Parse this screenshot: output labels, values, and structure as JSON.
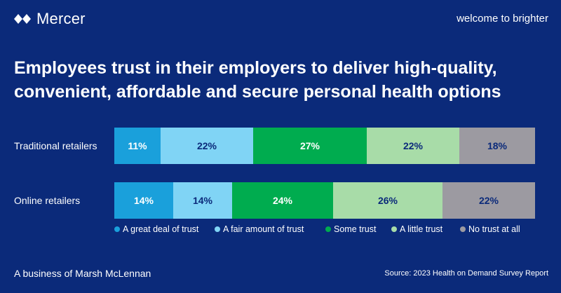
{
  "brand": {
    "name": "Mercer",
    "tagline": "welcome to brighter"
  },
  "headline": {
    "line1": "Employees trust in their employers to deliver high-quality,",
    "line2": "convenient, affordable and secure personal health options"
  },
  "footer": {
    "left": "A business of Marsh McLennan",
    "right": "Source: 2023 Health on Demand Survey Report"
  },
  "colors": {
    "background": "#0B2A7A",
    "series": [
      "#1AA0DB",
      "#80D4F5",
      "#00AC4F",
      "#A8DCA8",
      "#9C9AA1"
    ],
    "text_dark": "#0B2A7A",
    "text_light": "#ffffff"
  },
  "chart_data": {
    "type": "bar",
    "orientation": "horizontal-stacked-100",
    "categories": [
      "Traditional retailers",
      "Online retailers"
    ],
    "series": [
      {
        "name": "A great deal of trust",
        "values": [
          11,
          14
        ]
      },
      {
        "name": "A fair amount of trust",
        "values": [
          22,
          14
        ]
      },
      {
        "name": "Some trust",
        "values": [
          27,
          24
        ]
      },
      {
        "name": "A little trust",
        "values": [
          22,
          26
        ]
      },
      {
        "name": "No trust at all",
        "values": [
          18,
          22
        ]
      }
    ],
    "value_suffix": "%",
    "legend_position": "bottom",
    "grid": false
  }
}
